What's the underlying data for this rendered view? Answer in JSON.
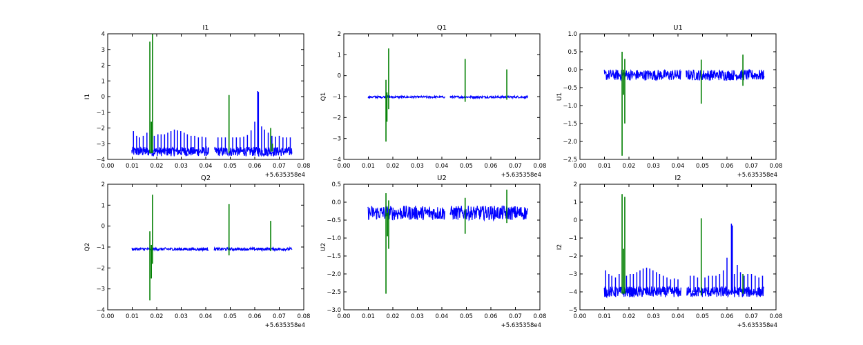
{
  "colors": {
    "primary": "#0000ff",
    "secondary": "#007f00"
  },
  "chart_data": [
    {
      "type": "line",
      "title": "I1",
      "xlabel": "",
      "ylabel": "I1",
      "x_offset_label": "+5.635358e4",
      "xlim": [
        0.0,
        0.08
      ],
      "ylim": [
        -4,
        4
      ],
      "xticks": [
        "0.00",
        "0.01",
        "0.02",
        "0.03",
        "0.04",
        "0.05",
        "0.06",
        "0.07",
        "0.08"
      ],
      "yticks": [
        "−4",
        "−3",
        "−2",
        "−1",
        "0",
        "1",
        "2",
        "3",
        "4"
      ],
      "series": [
        {
          "color": "primary",
          "baseline": -3.5,
          "noise": 0.3,
          "gap": [
            0.0413,
            0.0435
          ],
          "spikes": [
            [
              0.0105,
              -2.2
            ],
            [
              0.0118,
              -2.5
            ],
            [
              0.013,
              -2.6
            ],
            [
              0.0145,
              -2.5
            ],
            [
              0.016,
              -2.3
            ],
            [
              0.019,
              -2.5
            ],
            [
              0.0205,
              -2.4
            ],
            [
              0.0218,
              -2.4
            ],
            [
              0.0232,
              -2.4
            ],
            [
              0.0245,
              -2.3
            ],
            [
              0.0258,
              -2.2
            ],
            [
              0.0272,
              -2.1
            ],
            [
              0.0285,
              -2.15
            ],
            [
              0.0298,
              -2.2
            ],
            [
              0.0312,
              -2.3
            ],
            [
              0.0325,
              -2.4
            ],
            [
              0.034,
              -2.5
            ],
            [
              0.0355,
              -2.5
            ],
            [
              0.037,
              -2.6
            ],
            [
              0.0385,
              -2.55
            ],
            [
              0.04,
              -2.6
            ],
            [
              0.045,
              -2.6
            ],
            [
              0.0465,
              -2.6
            ],
            [
              0.048,
              -2.6
            ],
            [
              0.051,
              -2.6
            ],
            [
              0.0525,
              -2.6
            ],
            [
              0.054,
              -2.6
            ],
            [
              0.0555,
              -2.55
            ],
            [
              0.057,
              -2.45
            ],
            [
              0.0585,
              -2.15
            ],
            [
              0.06,
              -1.6
            ],
            [
              0.0612,
              0.35
            ],
            [
              0.0615,
              0.3
            ],
            [
              0.0628,
              -1.9
            ],
            [
              0.064,
              -2.1
            ],
            [
              0.0655,
              -2.3
            ],
            [
              0.067,
              -2.5
            ],
            [
              0.0685,
              -2.55
            ],
            [
              0.07,
              -2.5
            ],
            [
              0.0715,
              -2.6
            ],
            [
              0.073,
              -2.6
            ],
            [
              0.0745,
              -2.6
            ]
          ]
        },
        {
          "color": "secondary",
          "spikes": [
            [
              0.0172,
              3.5,
              -3.6
            ],
            [
              0.0178,
              -1.6,
              -3.6
            ],
            [
              0.0183,
              4.0,
              -3.6
            ],
            [
              0.0495,
              0.1,
              -3.6
            ],
            [
              0.0665,
              -2.0,
              -3.5
            ],
            [
              0.0672,
              -3.0,
              -3.5
            ]
          ]
        }
      ]
    },
    {
      "type": "line",
      "title": "Q1",
      "xlabel": "",
      "ylabel": "Q1",
      "x_offset_label": "+5.635358e4",
      "xlim": [
        0.0,
        0.08
      ],
      "ylim": [
        -4,
        2
      ],
      "xticks": [
        "0.00",
        "0.01",
        "0.02",
        "0.03",
        "0.04",
        "0.05",
        "0.06",
        "0.07",
        "0.08"
      ],
      "yticks": [
        "−4",
        "−3",
        "−2",
        "−1",
        "0",
        "1",
        "2"
      ],
      "series": [
        {
          "color": "primary",
          "baseline": -1.02,
          "noise": 0.05,
          "gap": [
            0.0413,
            0.0433
          ],
          "spikes": []
        },
        {
          "color": "secondary",
          "spikes": [
            [
              0.0172,
              -0.2,
              -3.15
            ],
            [
              0.0176,
              -0.8,
              -2.2
            ],
            [
              0.0183,
              1.3,
              -1.6
            ],
            [
              0.0495,
              0.8,
              -1.25
            ],
            [
              0.0665,
              0.3,
              -1.15
            ]
          ]
        }
      ]
    },
    {
      "type": "line",
      "title": "U1",
      "xlabel": "",
      "ylabel": "U1",
      "x_offset_label": "+5.635358e4",
      "xlim": [
        0.0,
        0.08
      ],
      "ylim": [
        -2.5,
        1.0
      ],
      "xticks": [
        "0.00",
        "0.01",
        "0.02",
        "0.03",
        "0.04",
        "0.05",
        "0.06",
        "0.07",
        "0.08"
      ],
      "yticks": [
        "−2.5",
        "−2.0",
        "−1.5",
        "−1.0",
        "−0.5",
        "0.0",
        "0.5",
        "1.0"
      ],
      "series": [
        {
          "color": "primary",
          "baseline": -0.15,
          "noise": 0.15,
          "gap": [
            0.0413,
            0.0433
          ],
          "spikes": []
        },
        {
          "color": "secondary",
          "spikes": [
            [
              0.0172,
              0.5,
              -2.4
            ],
            [
              0.0178,
              0.0,
              -0.7
            ],
            [
              0.0183,
              0.3,
              -1.5
            ],
            [
              0.0495,
              0.28,
              -0.95
            ],
            [
              0.0665,
              0.42,
              -0.45
            ]
          ]
        }
      ]
    },
    {
      "type": "line",
      "title": "Q2",
      "xlabel": "",
      "ylabel": "Q2",
      "x_offset_label": "+5.635358e4",
      "xlim": [
        0.0,
        0.08
      ],
      "ylim": [
        -4,
        2
      ],
      "xticks": [
        "0.00",
        "0.01",
        "0.02",
        "0.03",
        "0.04",
        "0.05",
        "0.06",
        "0.07",
        "0.08"
      ],
      "yticks": [
        "−4",
        "−3",
        "−2",
        "−1",
        "0",
        "1",
        "2"
      ],
      "series": [
        {
          "color": "primary",
          "baseline": -1.1,
          "noise": 0.07,
          "gap": [
            0.0413,
            0.0433
          ],
          "spikes": []
        },
        {
          "color": "secondary",
          "spikes": [
            [
              0.0172,
              -0.25,
              -3.55
            ],
            [
              0.0178,
              -0.9,
              -2.5
            ],
            [
              0.0183,
              1.5,
              -1.8
            ],
            [
              0.0495,
              1.05,
              -1.4
            ],
            [
              0.0665,
              0.25,
              -1.2
            ]
          ]
        }
      ]
    },
    {
      "type": "line",
      "title": "U2",
      "xlabel": "",
      "ylabel": "U2",
      "x_offset_label": "+5.635358e4",
      "xlim": [
        0.0,
        0.08
      ],
      "ylim": [
        -3.0,
        0.5
      ],
      "xticks": [
        "0.00",
        "0.01",
        "0.02",
        "0.03",
        "0.04",
        "0.05",
        "0.06",
        "0.07",
        "0.08"
      ],
      "yticks": [
        "−3.0",
        "−2.5",
        "−2.0",
        "−1.5",
        "−1.0",
        "−0.5",
        "0.0",
        "0.5"
      ],
      "series": [
        {
          "color": "primary",
          "baseline": -0.3,
          "noise": 0.2,
          "gap": [
            0.0413,
            0.0433
          ],
          "spikes": []
        },
        {
          "color": "secondary",
          "spikes": [
            [
              0.0172,
              0.25,
              -2.55
            ],
            [
              0.0178,
              -0.3,
              -0.95
            ],
            [
              0.0183,
              0.05,
              -1.3
            ],
            [
              0.0495,
              0.12,
              -0.88
            ],
            [
              0.0665,
              0.35,
              -0.58
            ]
          ]
        }
      ]
    },
    {
      "type": "line",
      "title": "I2",
      "xlabel": "",
      "ylabel": "I2",
      "x_offset_label": "+5.635358e4",
      "xlim": [
        0.0,
        0.08
      ],
      "ylim": [
        -5,
        2
      ],
      "xticks": [
        "0.00",
        "0.01",
        "0.02",
        "0.03",
        "0.04",
        "0.05",
        "0.06",
        "0.07",
        "0.08"
      ],
      "yticks": [
        "−5",
        "−4",
        "−3",
        "−2",
        "−1",
        "0",
        "1",
        "2"
      ],
      "series": [
        {
          "color": "primary",
          "baseline": -4.0,
          "noise": 0.3,
          "gap": [
            0.0413,
            0.0435
          ],
          "spikes": [
            [
              0.0105,
              -2.8
            ],
            [
              0.0118,
              -3.0
            ],
            [
              0.013,
              -3.1
            ],
            [
              0.0145,
              -3.2
            ],
            [
              0.016,
              -3.0
            ],
            [
              0.019,
              -3.1
            ],
            [
              0.0205,
              -3.0
            ],
            [
              0.0218,
              -3.0
            ],
            [
              0.0232,
              -2.9
            ],
            [
              0.0245,
              -2.8
            ],
            [
              0.0258,
              -2.7
            ],
            [
              0.0272,
              -2.65
            ],
            [
              0.0285,
              -2.7
            ],
            [
              0.0298,
              -2.8
            ],
            [
              0.0312,
              -2.9
            ],
            [
              0.0325,
              -3.0
            ],
            [
              0.034,
              -3.1
            ],
            [
              0.0355,
              -3.2
            ],
            [
              0.037,
              -3.3
            ],
            [
              0.0385,
              -3.25
            ],
            [
              0.04,
              -3.3
            ],
            [
              0.045,
              -3.1
            ],
            [
              0.0465,
              -3.1
            ],
            [
              0.048,
              -3.2
            ],
            [
              0.051,
              -3.2
            ],
            [
              0.0525,
              -3.1
            ],
            [
              0.054,
              -3.1
            ],
            [
              0.0555,
              -3.1
            ],
            [
              0.057,
              -3.0
            ],
            [
              0.0585,
              -2.8
            ],
            [
              0.06,
              -2.1
            ],
            [
              0.0618,
              -0.2
            ],
            [
              0.0622,
              -0.3
            ],
            [
              0.063,
              -3.0
            ],
            [
              0.0642,
              -2.5
            ],
            [
              0.0655,
              -2.9
            ],
            [
              0.067,
              -3.1
            ],
            [
              0.0685,
              -3.0
            ],
            [
              0.07,
              -3.0
            ],
            [
              0.0715,
              -3.1
            ],
            [
              0.073,
              -3.2
            ],
            [
              0.0745,
              -3.1
            ]
          ]
        },
        {
          "color": "secondary",
          "spikes": [
            [
              0.0172,
              1.45,
              -4.1
            ],
            [
              0.0178,
              -1.6,
              -4.1
            ],
            [
              0.0183,
              1.3,
              -4.1
            ],
            [
              0.0495,
              0.1,
              -4.2
            ],
            [
              0.0665,
              -3.0,
              -4.1
            ]
          ]
        }
      ]
    }
  ]
}
